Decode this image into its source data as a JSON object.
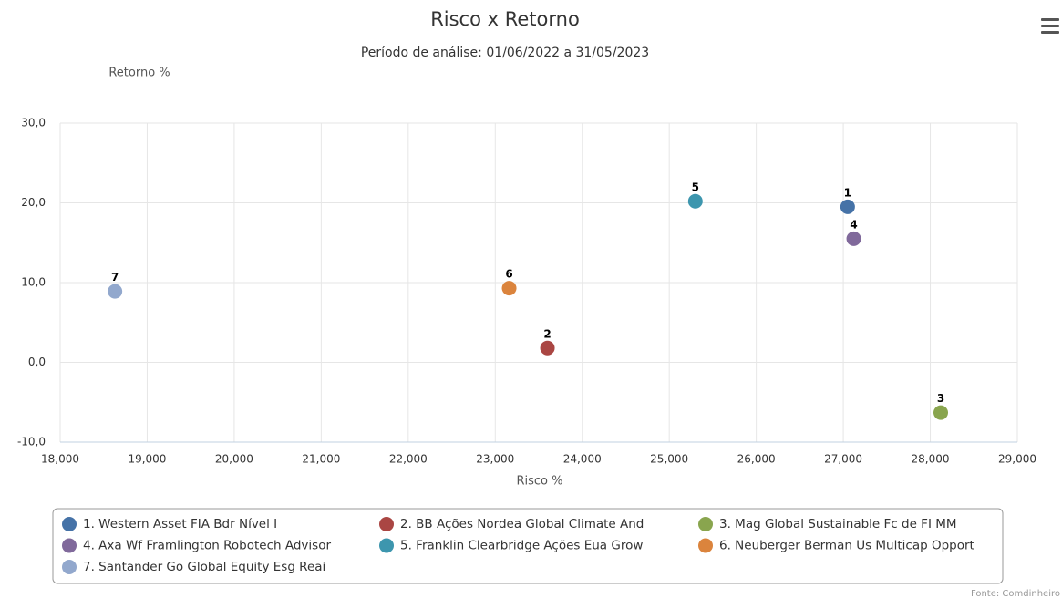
{
  "chart_data": {
    "type": "scatter",
    "title": "Risco x Retorno",
    "subtitle": "Período de análise: 01/06/2022 a 31/05/2023",
    "ylabel": "Retorno %",
    "xlabel": "Risco %",
    "credit": "Fonte: Comdinheiro",
    "xlim": [
      18,
      29
    ],
    "xticks": [
      {
        "value": 18,
        "label": "18,000"
      },
      {
        "value": 19,
        "label": "19,000"
      },
      {
        "value": 20,
        "label": "20,000"
      },
      {
        "value": 21,
        "label": "21,000"
      },
      {
        "value": 22,
        "label": "22,000"
      },
      {
        "value": 23,
        "label": "23,000"
      },
      {
        "value": 24,
        "label": "24,000"
      },
      {
        "value": 25,
        "label": "25,000"
      },
      {
        "value": 26,
        "label": "26,000"
      },
      {
        "value": 27,
        "label": "27,000"
      },
      {
        "value": 28,
        "label": "28,000"
      },
      {
        "value": 29,
        "label": "29,000"
      }
    ],
    "ylim": [
      -10,
      30
    ],
    "yticks": [
      {
        "value": -10,
        "label": "-10,0"
      },
      {
        "value": 0,
        "label": "0,0"
      },
      {
        "value": 10,
        "label": "10,0"
      },
      {
        "value": 20,
        "label": "20,0"
      },
      {
        "value": 30,
        "label": "30,0"
      }
    ],
    "grid": true,
    "series": [
      {
        "name": "1. Western Asset FIA Bdr Nível I",
        "label": "1",
        "color": "#4572a7",
        "x": [
          27.05
        ],
        "values": [
          19.5
        ]
      },
      {
        "name": "2. BB Ações Nordea Global Climate And",
        "label": "2",
        "color": "#aa4643",
        "x": [
          23.6
        ],
        "values": [
          1.8
        ]
      },
      {
        "name": "3. Mag Global Sustainable Fc de FI MM",
        "label": "3",
        "color": "#89a54e",
        "x": [
          28.12
        ],
        "values": [
          -6.3
        ]
      },
      {
        "name": "4. Axa Wf Framlington Robotech Advisor",
        "label": "4",
        "color": "#80699b",
        "x": [
          27.12
        ],
        "values": [
          15.5
        ]
      },
      {
        "name": "5. Franklin Clearbridge Ações Eua Grow",
        "label": "5",
        "color": "#3d96ae",
        "x": [
          25.3
        ],
        "values": [
          20.2
        ]
      },
      {
        "name": "6. Neuberger Berman Us Multicap Opport",
        "label": "6",
        "color": "#db843d",
        "x": [
          23.16
        ],
        "values": [
          9.3
        ]
      },
      {
        "name": "7. Santander Go Global Equity Esg Reai",
        "label": "7",
        "color": "#92a8cd",
        "x": [
          18.63
        ],
        "values": [
          8.9
        ]
      }
    ]
  }
}
